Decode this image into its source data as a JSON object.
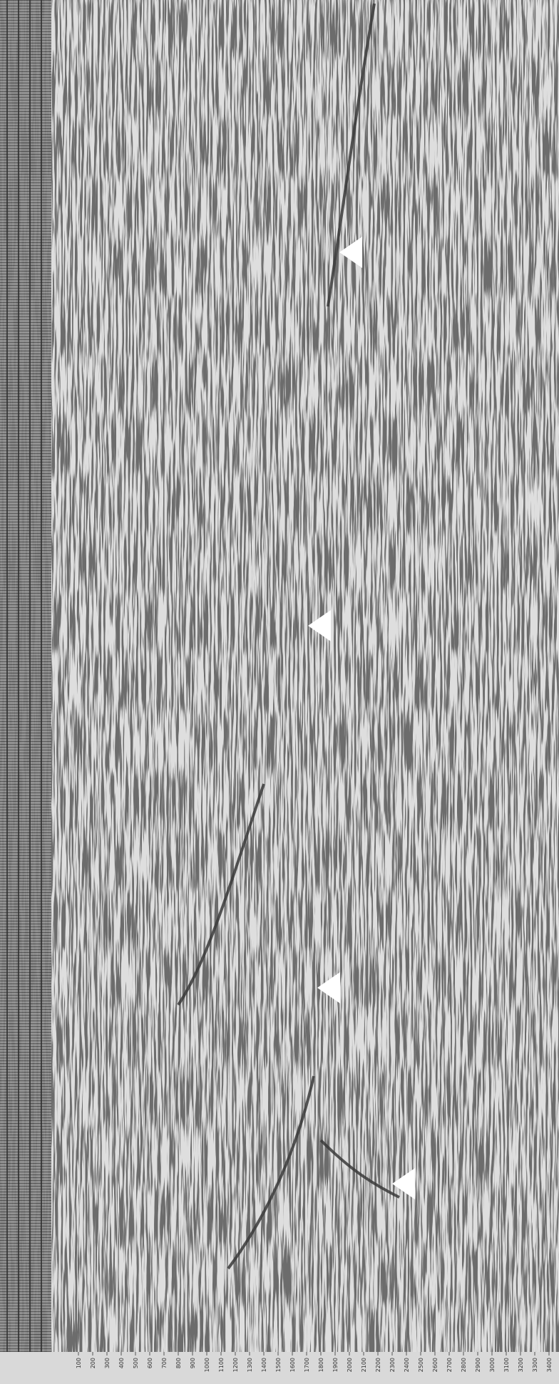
{
  "axis": {
    "ticks": [
      "100",
      "200",
      "300",
      "400",
      "500",
      "600",
      "700",
      "800",
      "900",
      "1000",
      "1100",
      "1200",
      "1300",
      "1400",
      "1500",
      "1600",
      "1700",
      "1800",
      "1900",
      "2000",
      "2100",
      "2200",
      "2300",
      "2400",
      "2500",
      "2600",
      "2700",
      "2800",
      "2900",
      "3000",
      "3100",
      "3200",
      "3300",
      "3400"
    ]
  }
}
